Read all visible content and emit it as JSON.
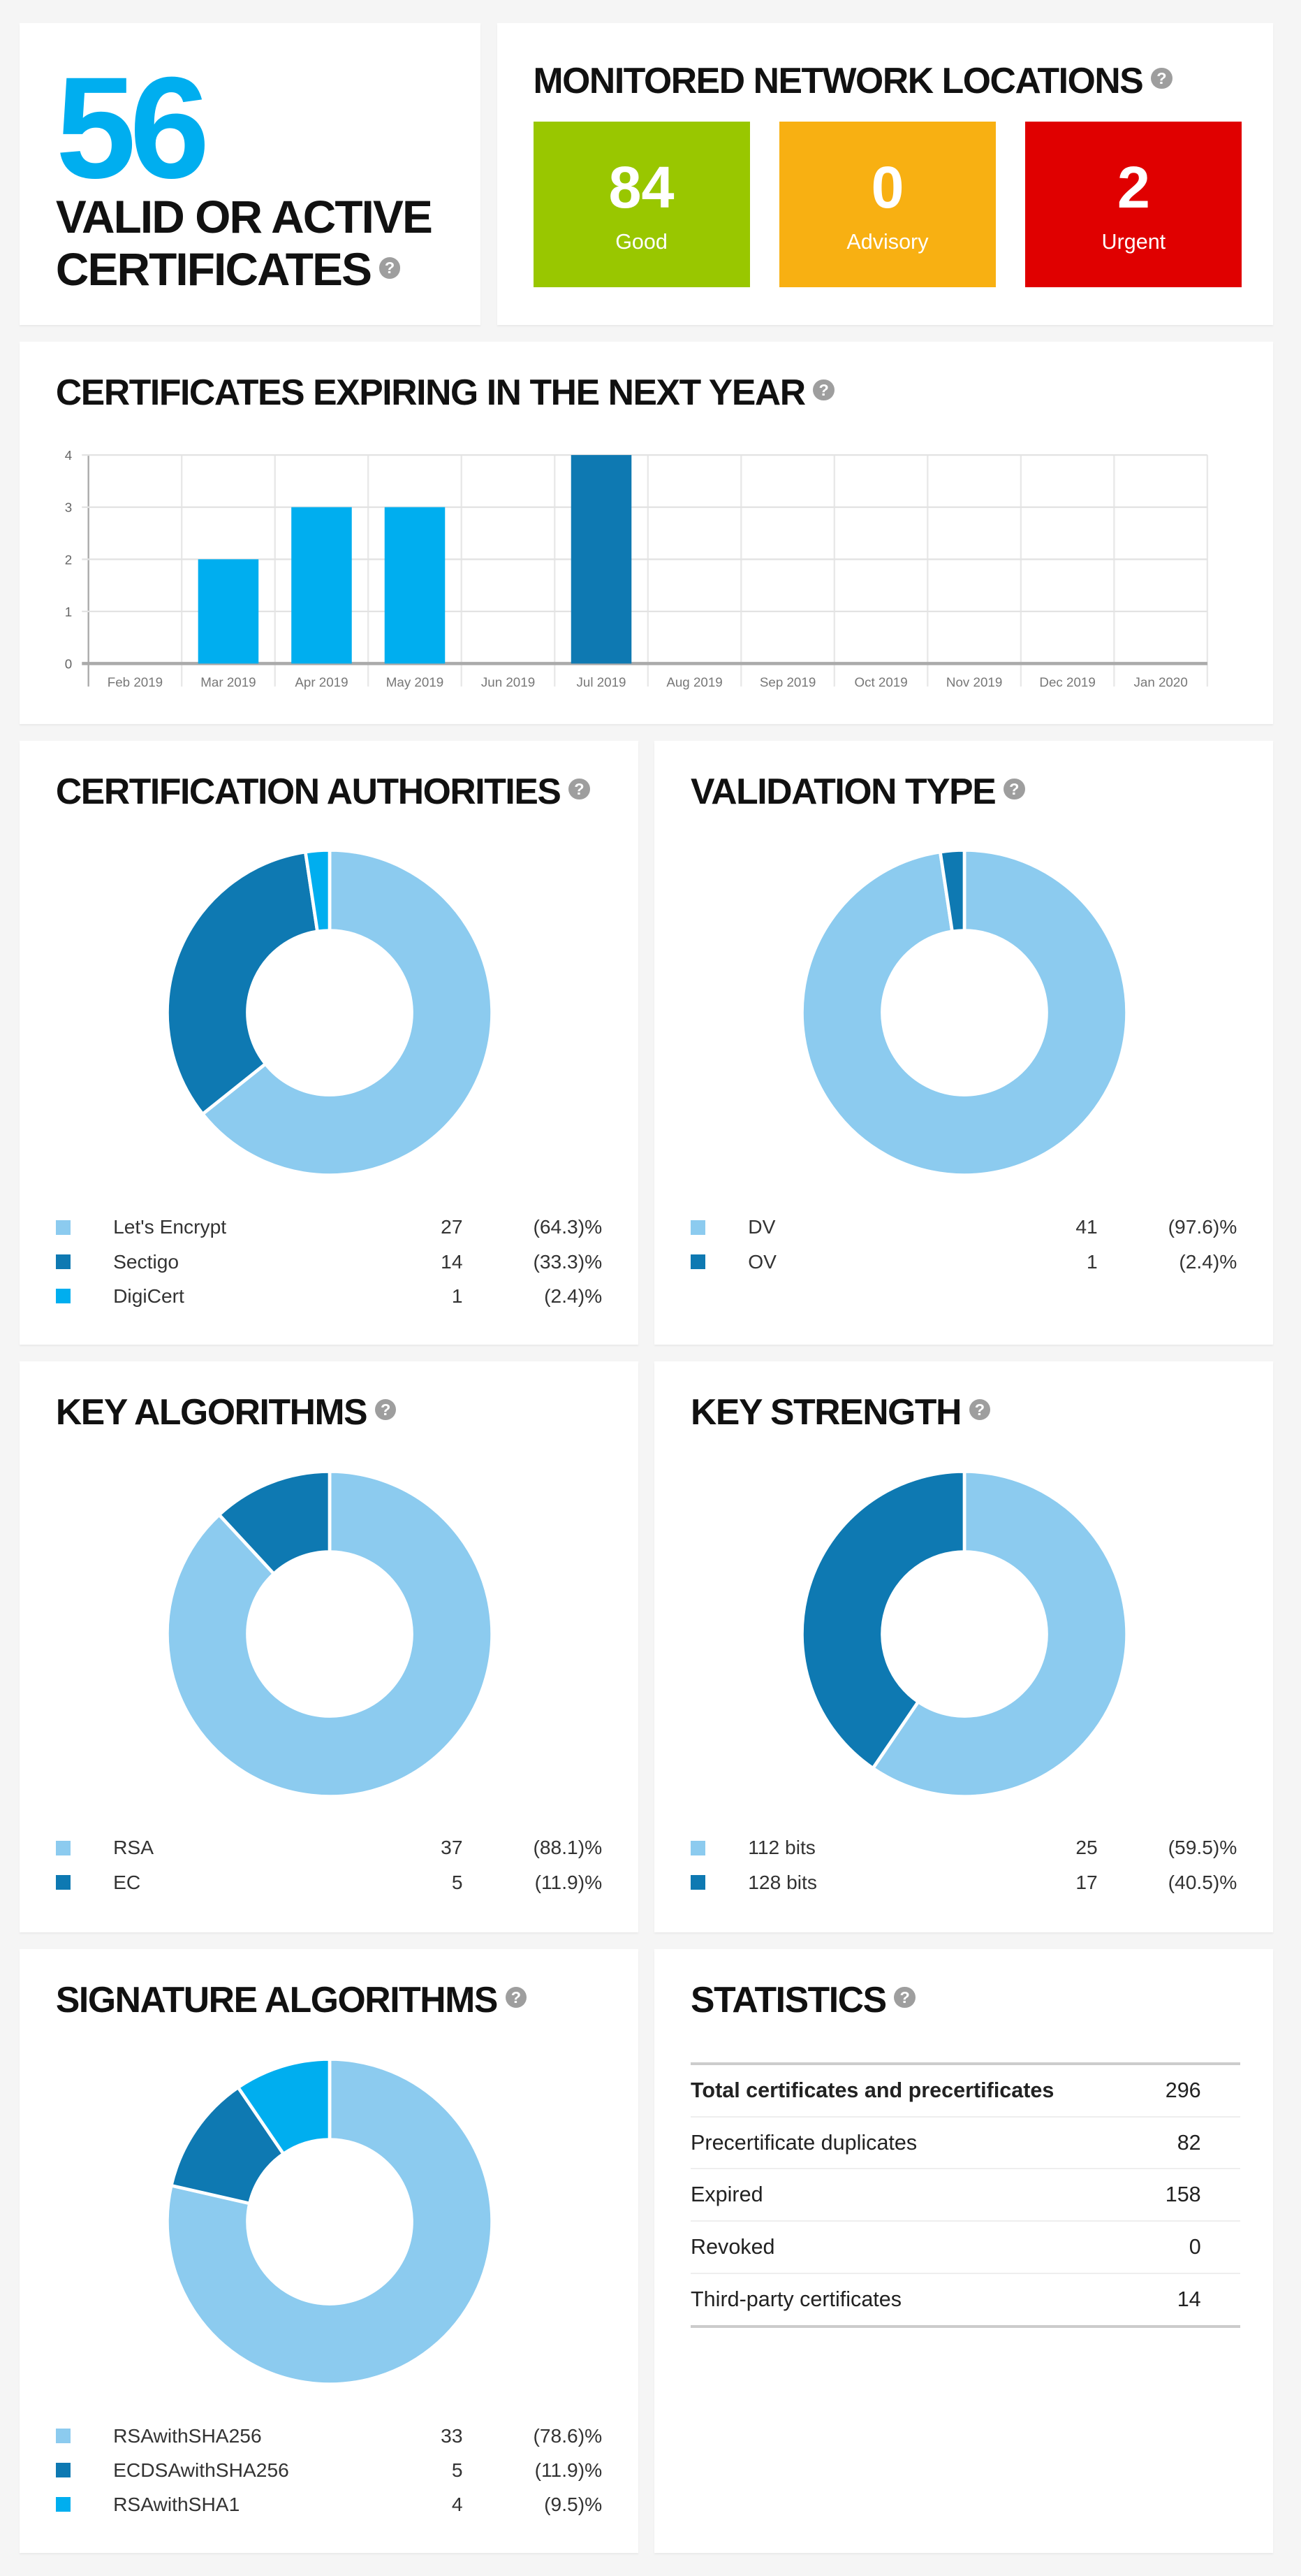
{
  "summary": {
    "count": "56",
    "label_line1": "VALID OR ACTIVE",
    "label_line2": "CERTIFICATES"
  },
  "network": {
    "title": "MONITORED NETWORK LOCATIONS",
    "tiles": [
      {
        "value": "84",
        "label": "Good",
        "color": "#99c700"
      },
      {
        "value": "0",
        "label": "Advisory",
        "color": "#f8b012"
      },
      {
        "value": "2",
        "label": "Urgent",
        "color": "#e00000"
      }
    ]
  },
  "help_glyph": "?",
  "chart_data": [
    {
      "type": "bar",
      "title": "CERTIFICATES EXPIRING IN THE NEXT YEAR",
      "categories": [
        "Feb 2019",
        "Mar 2019",
        "Apr 2019",
        "May 2019",
        "Jun 2019",
        "Jul 2019",
        "Aug 2019",
        "Sep 2019",
        "Oct 2019",
        "Nov 2019",
        "Dec 2019",
        "Jan 2020"
      ],
      "values": [
        0,
        2,
        3,
        3,
        0,
        4,
        0,
        0,
        0,
        0,
        0,
        0
      ],
      "bar_colors": [
        "#00aeef",
        "#00aeef",
        "#00aeef",
        "#00aeef",
        "#00aeef",
        "#0e79b2",
        "#00aeef",
        "#00aeef",
        "#00aeef",
        "#00aeef",
        "#00aeef",
        "#00aeef"
      ],
      "yticks": [
        "0",
        "1",
        "2",
        "3",
        "4"
      ],
      "ylim": [
        0,
        4
      ],
      "grid": true
    },
    {
      "type": "pie",
      "title": "CERTIFICATION AUTHORITIES",
      "slices": [
        {
          "name": "Let's Encrypt",
          "value": 27,
          "pct": "(64.3)%",
          "color": "#8ccbef"
        },
        {
          "name": "Sectigo",
          "value": 14,
          "pct": "(33.3)%",
          "color": "#0e79b2"
        },
        {
          "name": "DigiCert",
          "value": 1,
          "pct": "(2.4)%",
          "color": "#00aeef"
        }
      ]
    },
    {
      "type": "pie",
      "title": "VALIDATION TYPE",
      "slices": [
        {
          "name": "DV",
          "value": 41,
          "pct": "(97.6)%",
          "color": "#8ccbef"
        },
        {
          "name": "OV",
          "value": 1,
          "pct": "(2.4)%",
          "color": "#0e79b2"
        }
      ]
    },
    {
      "type": "pie",
      "title": "KEY ALGORITHMS",
      "slices": [
        {
          "name": "RSA",
          "value": 37,
          "pct": "(88.1)%",
          "color": "#8ccbef"
        },
        {
          "name": "EC",
          "value": 5,
          "pct": "(11.9)%",
          "color": "#0e79b2"
        }
      ]
    },
    {
      "type": "pie",
      "title": "KEY STRENGTH",
      "slices": [
        {
          "name": "112 bits",
          "value": 25,
          "pct": "(59.5)%",
          "color": "#8ccbef"
        },
        {
          "name": "128 bits",
          "value": 17,
          "pct": "(40.5)%",
          "color": "#0e79b2"
        }
      ]
    },
    {
      "type": "pie",
      "title": "SIGNATURE ALGORITHMS",
      "slices": [
        {
          "name": "RSAwithSHA256",
          "value": 33,
          "pct": "(78.6)%",
          "color": "#8ccbef"
        },
        {
          "name": "ECDSAwithSHA256",
          "value": 5,
          "pct": "(11.9)%",
          "color": "#0e79b2"
        },
        {
          "name": "RSAwithSHA1",
          "value": 4,
          "pct": "(9.5)%",
          "color": "#00aeef"
        }
      ]
    }
  ],
  "statistics": {
    "title": "STATISTICS",
    "rows": [
      {
        "label": "Total certificates and precertificates",
        "value": "296"
      },
      {
        "label": "Precertificate duplicates",
        "value": "82"
      },
      {
        "label": "Expired",
        "value": "158"
      },
      {
        "label": "Revoked",
        "value": "0"
      },
      {
        "label": "Third-party certificates",
        "value": "14"
      }
    ]
  }
}
